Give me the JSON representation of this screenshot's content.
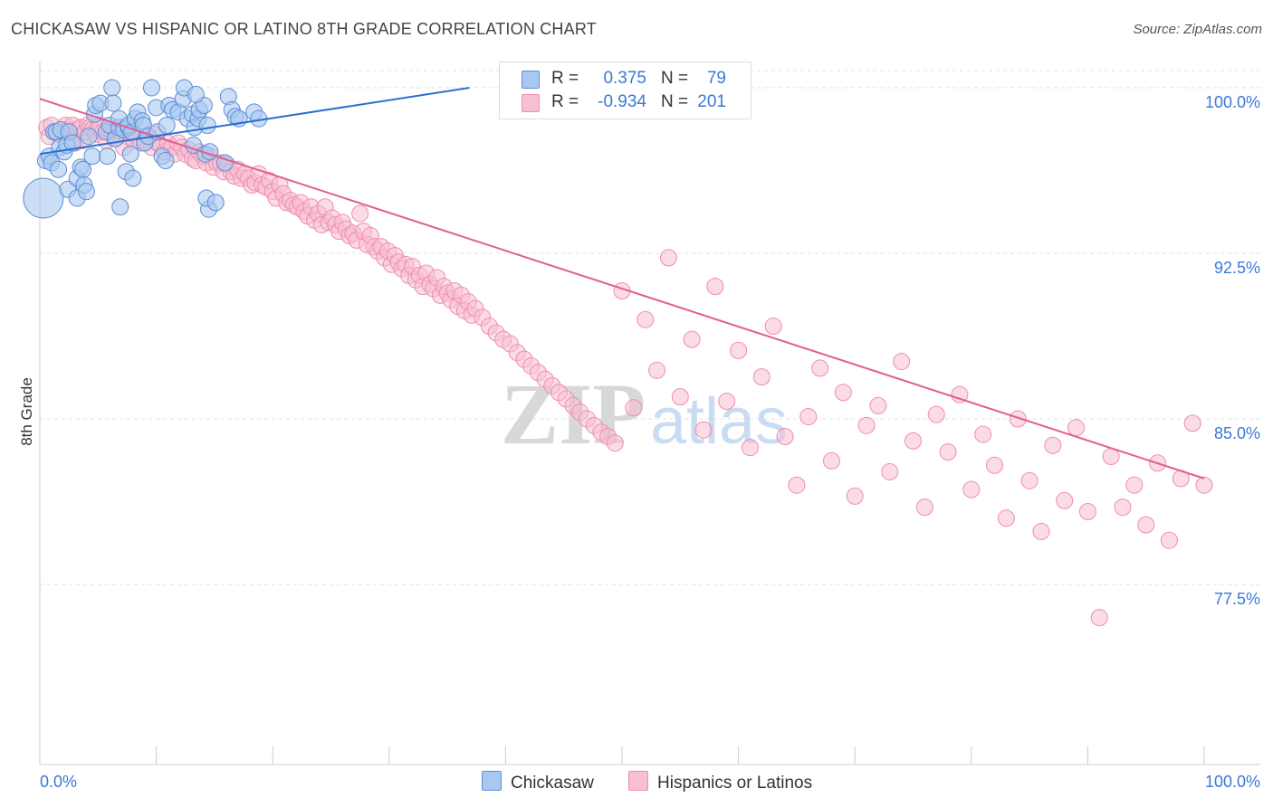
{
  "title": "CHICKASAW VS HISPANIC OR LATINO 8TH GRADE CORRELATION CHART",
  "source": "Source: ZipAtlas.com",
  "watermark": {
    "zip": "ZIP",
    "atlas": "atlas"
  },
  "legend": {
    "chickasaw": {
      "r_label": "R =",
      "r_value": "0.375",
      "n_label": "N =",
      "n_value": "79"
    },
    "hispanic": {
      "r_label": "R =",
      "r_value": "-0.934",
      "n_label": "N =",
      "n_value": "201"
    }
  },
  "bottom_legend": {
    "chickasaw": "Chickasaw",
    "hispanic": "Hispanics or Latinos"
  },
  "colors": {
    "chickasaw_fill": "#a9c8f0",
    "chickasaw_stroke": "#5b8fd6",
    "chickasaw_line": "#2a6fd0",
    "hispanic_fill": "#f7bfd2",
    "hispanic_stroke": "#ee8db0",
    "hispanic_line": "#e35d8f",
    "axis_text": "#3c78d8",
    "grid": "#e0e0e0"
  },
  "chart_data": {
    "type": "scatter",
    "title": "CHICKASAW VS HISPANIC OR LATINO 8TH GRADE CORRELATION CHART",
    "xlabel": "",
    "ylabel": "8th Grade",
    "xlim": [
      0,
      100
    ],
    "ylim": [
      70.0,
      100.5
    ],
    "x_tick_labels": [
      "0.0%",
      "100.0%"
    ],
    "y_ticks": [
      77.5,
      85.0,
      92.5,
      100.0
    ],
    "y_tick_labels": [
      "77.5%",
      "85.0%",
      "92.5%",
      "100.0%"
    ],
    "grid": true,
    "legend_position": "top-center",
    "series": [
      {
        "name": "Chickasaw",
        "trend": {
          "x": [
            0,
            36.9
          ],
          "y": [
            97.0,
            100.0
          ]
        },
        "points": [
          [
            0.3,
            95.0,
            22
          ],
          [
            0.5,
            96.7,
            9
          ],
          [
            0.8,
            96.9,
            9
          ],
          [
            1.0,
            96.6,
            9
          ],
          [
            1.2,
            98.0,
            9
          ],
          [
            1.4,
            98.0,
            9
          ],
          [
            1.6,
            96.3,
            9
          ],
          [
            1.7,
            97.3,
            9
          ],
          [
            1.8,
            98.1,
            9
          ],
          [
            2.1,
            97.1,
            9
          ],
          [
            2.3,
            97.4,
            9
          ],
          [
            2.4,
            95.4,
            9
          ],
          [
            2.5,
            98.0,
            9
          ],
          [
            2.8,
            97.5,
            9
          ],
          [
            3.2,
            95.9,
            9
          ],
          [
            3.2,
            95.0,
            9
          ],
          [
            3.5,
            96.4,
            9
          ],
          [
            3.7,
            96.3,
            9
          ],
          [
            3.8,
            95.6,
            9
          ],
          [
            4.0,
            95.3,
            9
          ],
          [
            4.2,
            97.8,
            9
          ],
          [
            4.5,
            96.9,
            9
          ],
          [
            4.7,
            98.8,
            9
          ],
          [
            4.8,
            99.2,
            9
          ],
          [
            5.2,
            99.3,
            9
          ],
          [
            5.7,
            98.0,
            9
          ],
          [
            5.8,
            96.9,
            9
          ],
          [
            6.0,
            98.3,
            9
          ],
          [
            6.2,
            100.0,
            9
          ],
          [
            6.3,
            99.3,
            9
          ],
          [
            6.5,
            97.7,
            9
          ],
          [
            6.8,
            98.2,
            9
          ],
          [
            6.8,
            98.6,
            9
          ],
          [
            6.9,
            94.6,
            9
          ],
          [
            7.2,
            98.1,
            9
          ],
          [
            7.4,
            96.2,
            9
          ],
          [
            7.6,
            98.2,
            9
          ],
          [
            7.6,
            98.3,
            9
          ],
          [
            7.8,
            97.0,
            9
          ],
          [
            7.9,
            98.0,
            9
          ],
          [
            8.0,
            95.9,
            9
          ],
          [
            8.2,
            98.6,
            9
          ],
          [
            8.4,
            98.9,
            9
          ],
          [
            8.8,
            98.5,
            9
          ],
          [
            8.9,
            98.3,
            9
          ],
          [
            9.0,
            97.5,
            9
          ],
          [
            9.3,
            97.8,
            9
          ],
          [
            9.6,
            100.0,
            9
          ],
          [
            10.0,
            99.1,
            9
          ],
          [
            10.1,
            98.0,
            9
          ],
          [
            10.5,
            96.9,
            9
          ],
          [
            10.8,
            96.7,
            9
          ],
          [
            10.9,
            98.3,
            9
          ],
          [
            11.1,
            99.2,
            9
          ],
          [
            11.4,
            99.0,
            9
          ],
          [
            11.9,
            98.9,
            9
          ],
          [
            12.3,
            99.5,
            9
          ],
          [
            12.4,
            100.0,
            9
          ],
          [
            12.7,
            98.6,
            9
          ],
          [
            13.1,
            98.8,
            9
          ],
          [
            13.3,
            98.2,
            9
          ],
          [
            13.6,
            98.6,
            9
          ],
          [
            13.7,
            99.0,
            9
          ],
          [
            14.1,
            99.2,
            9
          ],
          [
            14.4,
            98.3,
            9
          ],
          [
            13.2,
            97.4,
            9
          ],
          [
            13.4,
            99.7,
            9
          ],
          [
            14.2,
            97.0,
            9
          ],
          [
            14.5,
            94.5,
            9
          ],
          [
            14.6,
            97.1,
            9
          ],
          [
            14.3,
            95.0,
            9
          ],
          [
            15.1,
            94.8,
            9
          ],
          [
            15.9,
            96.6,
            9
          ],
          [
            16.2,
            99.6,
            9
          ],
          [
            16.5,
            99.0,
            9
          ],
          [
            16.8,
            98.7,
            9
          ],
          [
            17.1,
            98.6,
            9
          ],
          [
            18.4,
            98.9,
            9
          ],
          [
            18.8,
            98.6,
            9
          ]
        ]
      },
      {
        "name": "Hispanics or Latinos",
        "trend": {
          "x": [
            0,
            100
          ],
          "y": [
            99.5,
            82.3
          ]
        },
        "points": [
          [
            0.6,
            98.2
          ],
          [
            0.8,
            97.8
          ],
          [
            1.0,
            98.3
          ],
          [
            1.4,
            98.0
          ],
          [
            1.6,
            97.9
          ],
          [
            1.9,
            98.0
          ],
          [
            2.2,
            98.3
          ],
          [
            2.4,
            98.1
          ],
          [
            2.6,
            98.0
          ],
          [
            2.8,
            98.3
          ],
          [
            3.0,
            97.5
          ],
          [
            3.3,
            98.1
          ],
          [
            3.5,
            98.2
          ],
          [
            3.7,
            97.6
          ],
          [
            3.9,
            98.0
          ],
          [
            4.1,
            98.3
          ],
          [
            4.3,
            98.2
          ],
          [
            4.5,
            98.1
          ],
          [
            4.8,
            97.9
          ],
          [
            5.0,
            98.2
          ],
          [
            5.2,
            98.3
          ],
          [
            5.4,
            98.0
          ],
          [
            5.7,
            97.6
          ],
          [
            5.9,
            98.1
          ],
          [
            6.2,
            98.0
          ],
          [
            6.4,
            97.7
          ],
          [
            6.7,
            98.1
          ],
          [
            7.0,
            98.0
          ],
          [
            7.2,
            97.3
          ],
          [
            7.5,
            97.8
          ],
          [
            7.8,
            98.0
          ],
          [
            8.1,
            97.6
          ],
          [
            8.4,
            97.8
          ],
          [
            8.7,
            97.5
          ],
          [
            9.0,
            97.6
          ],
          [
            9.3,
            97.8
          ],
          [
            9.6,
            97.3
          ],
          [
            9.8,
            97.9
          ],
          [
            10.1,
            97.5
          ],
          [
            10.4,
            97.4
          ],
          [
            10.7,
            97.1
          ],
          [
            11.0,
            97.5
          ],
          [
            11.3,
            97.3
          ],
          [
            11.6,
            97.0
          ],
          [
            11.9,
            97.5
          ],
          [
            12.2,
            97.3
          ],
          [
            12.5,
            97.0
          ],
          [
            12.8,
            97.2
          ],
          [
            13.1,
            96.8
          ],
          [
            13.4,
            96.7
          ],
          [
            13.7,
            97.1
          ],
          [
            14.0,
            96.9
          ],
          [
            14.3,
            96.6
          ],
          [
            14.6,
            96.9
          ],
          [
            14.9,
            96.4
          ],
          [
            15.2,
            96.6
          ],
          [
            15.5,
            96.6
          ],
          [
            15.8,
            96.2
          ],
          [
            16.1,
            96.5
          ],
          [
            16.4,
            96.2
          ],
          [
            16.7,
            96.0
          ],
          [
            17.0,
            96.3
          ],
          [
            17.3,
            95.9
          ],
          [
            17.6,
            96.1
          ],
          [
            17.9,
            95.9
          ],
          [
            18.2,
            95.6
          ],
          [
            18.5,
            95.7
          ],
          [
            18.8,
            96.1
          ],
          [
            19.1,
            95.6
          ],
          [
            19.4,
            95.5
          ],
          [
            19.7,
            95.8
          ],
          [
            20.0,
            95.3
          ],
          [
            20.3,
            95.0
          ],
          [
            20.6,
            95.6
          ],
          [
            20.9,
            95.2
          ],
          [
            21.2,
            94.8
          ],
          [
            21.5,
            94.9
          ],
          [
            21.8,
            94.7
          ],
          [
            22.1,
            94.6
          ],
          [
            22.4,
            94.8
          ],
          [
            22.7,
            94.4
          ],
          [
            23.0,
            94.2
          ],
          [
            23.3,
            94.6
          ],
          [
            23.6,
            94.0
          ],
          [
            23.9,
            94.3
          ],
          [
            24.2,
            93.8
          ],
          [
            24.5,
            94.6
          ],
          [
            24.8,
            93.9
          ],
          [
            25.1,
            94.1
          ],
          [
            25.4,
            93.8
          ],
          [
            25.7,
            93.5
          ],
          [
            26.0,
            93.9
          ],
          [
            26.3,
            93.6
          ],
          [
            26.6,
            93.3
          ],
          [
            26.9,
            93.4
          ],
          [
            27.2,
            93.1
          ],
          [
            27.5,
            94.3
          ],
          [
            27.8,
            93.5
          ],
          [
            28.1,
            92.9
          ],
          [
            28.4,
            93.3
          ],
          [
            28.7,
            92.8
          ],
          [
            29.0,
            92.6
          ],
          [
            29.3,
            92.8
          ],
          [
            29.6,
            92.3
          ],
          [
            29.9,
            92.6
          ],
          [
            30.2,
            92.0
          ],
          [
            30.5,
            92.4
          ],
          [
            30.8,
            92.1
          ],
          [
            31.1,
            91.8
          ],
          [
            31.4,
            92.0
          ],
          [
            31.7,
            91.5
          ],
          [
            32.0,
            91.9
          ],
          [
            32.3,
            91.3
          ],
          [
            32.6,
            91.5
          ],
          [
            32.9,
            91.0
          ],
          [
            33.2,
            91.6
          ],
          [
            33.5,
            91.1
          ],
          [
            33.8,
            90.9
          ],
          [
            34.1,
            91.4
          ],
          [
            34.4,
            90.6
          ],
          [
            34.7,
            91.0
          ],
          [
            35.0,
            90.7
          ],
          [
            35.3,
            90.4
          ],
          [
            35.6,
            90.8
          ],
          [
            35.9,
            90.1
          ],
          [
            36.2,
            90.6
          ],
          [
            36.5,
            89.9
          ],
          [
            36.8,
            90.3
          ],
          [
            37.1,
            89.7
          ],
          [
            37.4,
            90.0
          ],
          [
            38.0,
            89.6
          ],
          [
            38.6,
            89.2
          ],
          [
            39.2,
            88.9
          ],
          [
            39.8,
            88.6
          ],
          [
            40.4,
            88.4
          ],
          [
            41.0,
            88.0
          ],
          [
            41.6,
            87.7
          ],
          [
            42.2,
            87.4
          ],
          [
            42.8,
            87.1
          ],
          [
            43.4,
            86.8
          ],
          [
            44.0,
            86.5
          ],
          [
            44.6,
            86.2
          ],
          [
            45.2,
            85.9
          ],
          [
            45.8,
            85.6
          ],
          [
            46.4,
            85.3
          ],
          [
            47.0,
            85.0
          ],
          [
            47.6,
            84.7
          ],
          [
            48.2,
            84.4
          ],
          [
            48.8,
            84.2
          ],
          [
            49.4,
            83.9
          ],
          [
            50.0,
            90.8
          ],
          [
            51.0,
            85.5
          ],
          [
            52.0,
            89.5
          ],
          [
            53.0,
            87.2
          ],
          [
            54.0,
            92.3
          ],
          [
            55.0,
            86.0
          ],
          [
            56.0,
            88.6
          ],
          [
            57.0,
            84.5
          ],
          [
            58.0,
            91.0
          ],
          [
            59.0,
            85.8
          ],
          [
            60.0,
            88.1
          ],
          [
            61.0,
            83.7
          ],
          [
            62.0,
            86.9
          ],
          [
            63.0,
            89.2
          ],
          [
            64.0,
            84.2
          ],
          [
            65.0,
            82.0
          ],
          [
            66.0,
            85.1
          ],
          [
            67.0,
            87.3
          ],
          [
            68.0,
            83.1
          ],
          [
            69.0,
            86.2
          ],
          [
            70.0,
            81.5
          ],
          [
            71.0,
            84.7
          ],
          [
            72.0,
            85.6
          ],
          [
            73.0,
            82.6
          ],
          [
            74.0,
            87.6
          ],
          [
            75.0,
            84.0
          ],
          [
            76.0,
            81.0
          ],
          [
            77.0,
            85.2
          ],
          [
            78.0,
            83.5
          ],
          [
            79.0,
            86.1
          ],
          [
            80.0,
            81.8
          ],
          [
            81.0,
            84.3
          ],
          [
            82.0,
            82.9
          ],
          [
            83.0,
            80.5
          ],
          [
            84.0,
            85.0
          ],
          [
            85.0,
            82.2
          ],
          [
            86.0,
            79.9
          ],
          [
            87.0,
            83.8
          ],
          [
            88.0,
            81.3
          ],
          [
            89.0,
            84.6
          ],
          [
            90.0,
            80.8
          ],
          [
            91.0,
            76.0
          ],
          [
            92.0,
            83.3
          ],
          [
            93.0,
            81.0
          ],
          [
            94.0,
            82.0
          ],
          [
            95.0,
            80.2
          ],
          [
            96.0,
            83.0
          ],
          [
            97.0,
            79.5
          ],
          [
            98.0,
            82.3
          ],
          [
            99.0,
            84.8
          ],
          [
            100.0,
            82.0
          ]
        ]
      }
    ]
  }
}
